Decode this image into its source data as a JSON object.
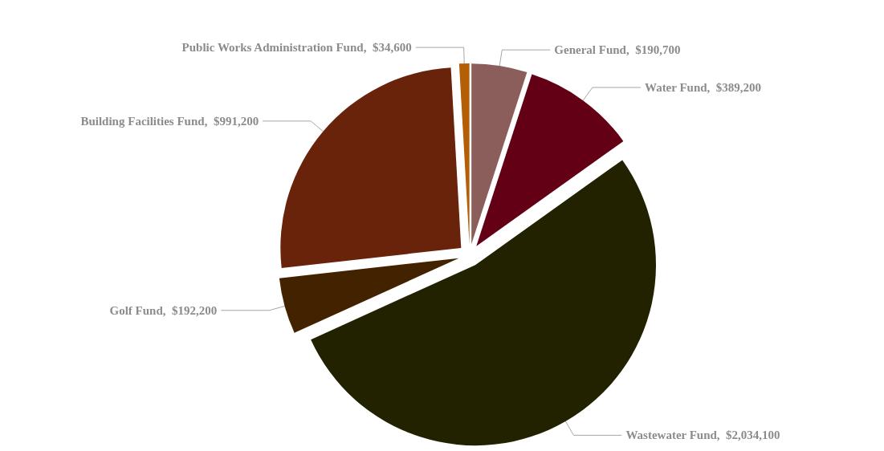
{
  "chart_data": {
    "type": "pie",
    "categories": [
      "General Fund",
      "Water Fund",
      "Wastewater Fund",
      "Golf Fund",
      "Building Facilities Fund",
      "Public Works Administration Fund"
    ],
    "values": [
      190700,
      389200,
      2034100,
      192200,
      991200,
      34600
    ],
    "value_labels": [
      "$190,700",
      "$389,200",
      "$2,034,100",
      "$192,200",
      "$991,200",
      "$34,600"
    ],
    "colors": [
      "#8b5e5b",
      "#640016",
      "#222200",
      "#432200",
      "#6a230b",
      "#b45f06"
    ],
    "legend": false
  }
}
